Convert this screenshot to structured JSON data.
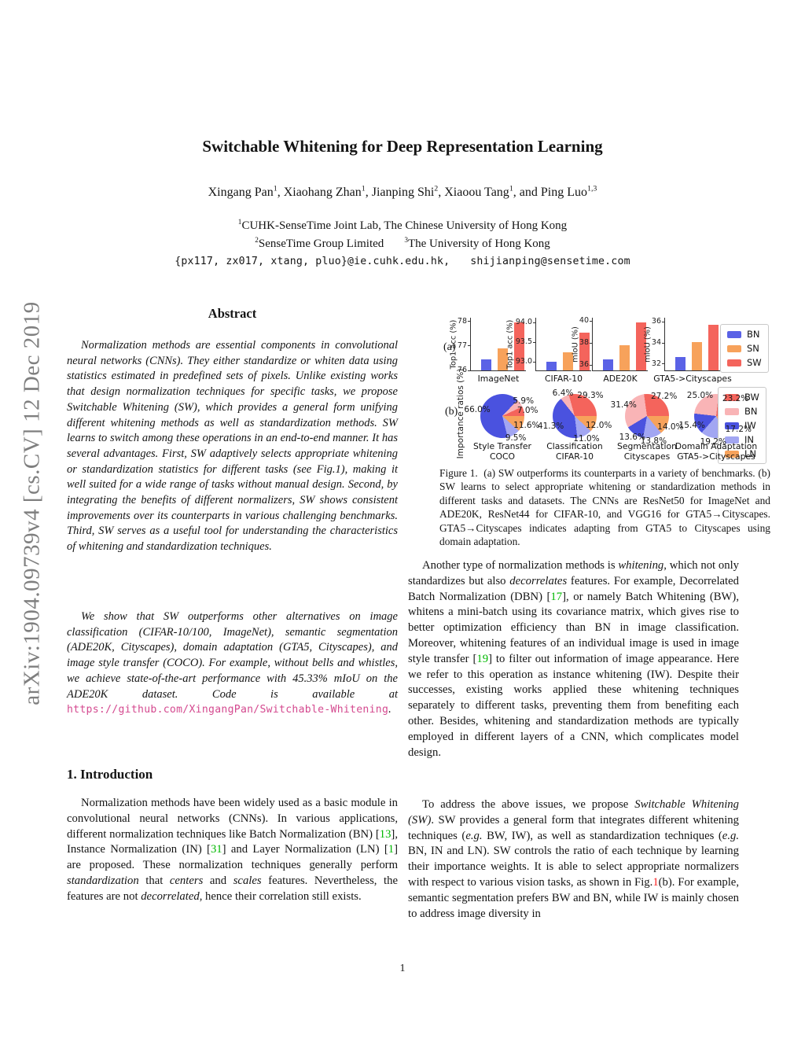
{
  "watermark": "arXiv:1904.09739v4  [cs.CV]  12 Dec 2019",
  "page_number": "1",
  "header": {
    "title": "Switchable Whitening for Deep Representation Learning",
    "authors_segments": [
      {
        "t": "Xingang Pan"
      },
      {
        "t": "1",
        "s": "sup"
      },
      {
        "t": ", Xiaohang Zhan"
      },
      {
        "t": "1",
        "s": "sup"
      },
      {
        "t": ", Jianping Shi"
      },
      {
        "t": "2",
        "s": "sup"
      },
      {
        "t": ", Xiaoou Tang"
      },
      {
        "t": "1",
        "s": "sup"
      },
      {
        "t": ", and Ping Luo"
      },
      {
        "t": "1,3",
        "s": "sup"
      }
    ],
    "affiliation1_segments": [
      {
        "t": "1",
        "s": "sup"
      },
      {
        "t": "CUHK-SenseTime Joint Lab, The Chinese University of Hong Kong"
      }
    ],
    "affiliation2_segments": [
      {
        "t": "2",
        "s": "sup"
      },
      {
        "t": "SenseTime Group Limited"
      },
      {
        "t": "",
        "s": "gap"
      },
      {
        "t": "3",
        "s": "sup"
      },
      {
        "t": "The University of Hong Kong"
      }
    ],
    "emails_segments": [
      {
        "t": "{px117, zx017, xtang, pluo}@ie.cuhk.edu.hk,"
      },
      {
        "t": "",
        "s": "gap"
      },
      {
        "t": "shijianping@sensetime.com"
      }
    ]
  },
  "abstract": {
    "heading": "Abstract",
    "p1": "Normalization methods are essential components in convolutional neural networks (CNNs). They either standardize or whiten data using statistics estimated in predefined sets of pixels. Unlike existing works that design normalization techniques for specific tasks, we propose Switchable Whitening (SW), which provides a general form unifying different whitening methods as well as standardization methods. SW learns to switch among these operations in an end-to-end manner. It has several advantages. First, SW adaptively selects appropriate whitening or standardization statistics for different tasks (see Fig.1), making it well suited for a wide range of tasks without manual design. Second, by integrating the benefits of different normalizers, SW shows consistent improvements over its counterparts in various challenging benchmarks. Third, SW serves as a useful tool for understanding the characteristics of whitening and standardization techniques.",
    "p2_segments": [
      {
        "t": "We show that SW outperforms other alternatives on image classification (CIFAR-10/100, ImageNet), semantic segmentation (ADE20K, Cityscapes), domain adaptation (GTA5, Cityscapes), and image style transfer (COCO). For example, without bells and whistles, we achieve state-of-the-art performance with 45.33% mIoU on the ADE20K dataset. Code is available at "
      },
      {
        "t": "https://github.com/XingangPan/Switchable-Whitening",
        "s": "link"
      },
      {
        "t": "."
      }
    ]
  },
  "introduction": {
    "heading": "1. Introduction",
    "p1_segments": [
      {
        "t": "Normalization methods have been widely used as a basic module in convolutional neural networks (CNNs). In various applications, different normalization techniques like Batch Normalization (BN) ["
      },
      {
        "t": "13",
        "s": "cite"
      },
      {
        "t": "], Instance Normalization (IN) ["
      },
      {
        "t": "31",
        "s": "cite"
      },
      {
        "t": "] and Layer Normalization (LN) ["
      },
      {
        "t": "1",
        "s": "cite"
      },
      {
        "t": "] are proposed. These normalization techniques generally perform "
      },
      {
        "t": "standardization",
        "s": "i"
      },
      {
        "t": " that "
      },
      {
        "t": "centers",
        "s": "i"
      },
      {
        "t": " and "
      },
      {
        "t": "scales",
        "s": "i"
      },
      {
        "t": " features. Nevertheless, the features are not "
      },
      {
        "t": "decorrelated",
        "s": "i"
      },
      {
        "t": ", hence their correlation still exists."
      }
    ]
  },
  "main": {
    "p1_segments": [
      {
        "t": "Another type of normalization methods is "
      },
      {
        "t": "whitening",
        "s": "i"
      },
      {
        "t": ", which not only standardizes but also "
      },
      {
        "t": "decorrelates",
        "s": "i"
      },
      {
        "t": " features. For example, Decorrelated Batch Normalization (DBN) ["
      },
      {
        "t": "17",
        "s": "cite"
      },
      {
        "t": "], or namely Batch Whitening (BW), whitens a mini-batch using its covariance matrix, which gives rise to better optimization efficiency than BN in image classification. Moreover, whitening features of an individual image is used in image style transfer ["
      },
      {
        "t": "19",
        "s": "cite"
      },
      {
        "t": "] to filter out information of image appearance. Here we refer to this operation as instance whitening (IW). Despite their successes, existing works applied these whitening techniques separately to different tasks, preventing them from benefiting each other. Besides, whitening and standardization methods are typically employed in different layers of a CNN, which complicates model design."
      }
    ],
    "p2_segments": [
      {
        "t": "To address the above issues, we propose "
      },
      {
        "t": "Switchable Whitening (SW)",
        "s": "i"
      },
      {
        "t": ". SW provides a general form that integrates different whitening techniques ("
      },
      {
        "t": "e.g.",
        "s": "i"
      },
      {
        "t": " BW, IW), as well as standardization techniques ("
      },
      {
        "t": "e.g.",
        "s": "i"
      },
      {
        "t": " BN, IN and LN). SW controls the ratio of each technique by learning their importance weights. It is able to select appropriate normalizers with respect to various vision tasks, as shown in Fig."
      },
      {
        "t": "1",
        "s": "figref"
      },
      {
        "t": "(b). For example, semantic segmentation prefers BW and BN, while IW is mainly chosen to address image diversity in"
      }
    ]
  },
  "figure": {
    "panel_a_label": "(a)",
    "panel_b_label": "(b)",
    "importance_axis_label": "Importance ratios (%)",
    "caption": "Figure 1.  (a) SW outperforms its counterparts in a variety of benchmarks. (b) SW learns to select appropriate whitening or standardization methods in different tasks and datasets. The CNNs are ResNet50 for ImageNet and ADE20K, ResNet44 for CIFAR-10, and VGG16 for GTA5→Cityscapes. GTA5→Cityscapes indicates adapting from GTA5 to Cityscapes using domain adaptation.",
    "bar_legend": [
      {
        "label": "BN",
        "color": "#5a62e6"
      },
      {
        "label": "SN",
        "color": "#f7a25b"
      },
      {
        "label": "SW",
        "color": "#f4645c"
      }
    ],
    "pie_legend": [
      {
        "label": "BW",
        "color": "#f4645c"
      },
      {
        "label": "BN",
        "color": "#f9b4b6"
      },
      {
        "label": "IW",
        "color": "#4a52df"
      },
      {
        "label": "IN",
        "color": "#a2a6f2"
      },
      {
        "label": "LN",
        "color": "#f7a25b"
      }
    ]
  },
  "chart_data": [
    {
      "type": "bar",
      "panel": "a",
      "title": "ImageNet",
      "ylabel": "Top1 acc (%)",
      "categories": [
        "BN",
        "SN",
        "SW"
      ],
      "values": [
        76.45,
        76.9,
        77.95
      ],
      "ylim": [
        76,
        78.15
      ],
      "yticks": [
        {
          "label": "76",
          "v": 76
        },
        {
          "label": "77",
          "v": 77
        },
        {
          "label": "78",
          "v": 78
        }
      ]
    },
    {
      "type": "bar",
      "panel": "a",
      "title": "CIFAR-10",
      "ylabel": "Top1 acc (%)",
      "categories": [
        "BN",
        "SN",
        "SW"
      ],
      "values": [
        93.0,
        93.25,
        93.75
      ],
      "ylim": [
        92.78,
        94.12
      ],
      "yticks": [
        {
          "label": "93.0",
          "v": 93.0
        },
        {
          "label": "93.5",
          "v": 93.5
        },
        {
          "label": "94.0",
          "v": 94.0
        }
      ]
    },
    {
      "type": "bar",
      "panel": "a",
      "title": "ADE20K",
      "ylabel": "mIoU (%)",
      "categories": [
        "BN",
        "SN",
        "SW"
      ],
      "values": [
        36.5,
        37.8,
        39.85
      ],
      "ylim": [
        35.5,
        40.3
      ],
      "yticks": [
        {
          "label": "36",
          "v": 36
        },
        {
          "label": "38",
          "v": 38
        },
        {
          "label": "40",
          "v": 40
        }
      ]
    },
    {
      "type": "bar",
      "panel": "a",
      "title": "GTA5->Cityscapes",
      "ylabel": "mIoU (%)",
      "categories": [
        "BN",
        "SN",
        "SW"
      ],
      "values": [
        32.7,
        34.1,
        35.7
      ],
      "ylim": [
        31.4,
        36.4
      ],
      "yticks": [
        {
          "label": "32",
          "v": 32
        },
        {
          "label": "34",
          "v": 34
        },
        {
          "label": "36",
          "v": 36
        }
      ]
    },
    {
      "type": "pie",
      "panel": "b",
      "title_lines": [
        "Style Transfer",
        "COCO"
      ],
      "categories": [
        "BW",
        "BN",
        "IW",
        "IN",
        "LN"
      ],
      "values": [
        7.0,
        5.9,
        66.0,
        9.5,
        11.6
      ],
      "labels": [
        "7.0%",
        "5.9%",
        "66.0%",
        "9.5%",
        "11.6%"
      ]
    },
    {
      "type": "pie",
      "panel": "b",
      "title_lines": [
        "Classification",
        "CIFAR-10"
      ],
      "categories": [
        "BW",
        "BN",
        "IW",
        "IN",
        "LN"
      ],
      "values": [
        29.3,
        6.4,
        41.3,
        11.0,
        12.0
      ],
      "labels": [
        "29.3%",
        "6.4%",
        "41.3%",
        "11.0%",
        "12.0%"
      ]
    },
    {
      "type": "pie",
      "panel": "b",
      "title_lines": [
        "Segmentation",
        "Cityscapes"
      ],
      "categories": [
        "BW",
        "BN",
        "IW",
        "IN",
        "LN"
      ],
      "values": [
        27.2,
        31.4,
        13.6,
        13.8,
        14.0
      ],
      "labels": [
        "27.2%",
        "31.4%",
        "13.6%",
        "13.8%",
        "14.0%"
      ]
    },
    {
      "type": "pie",
      "panel": "b",
      "title_lines": [
        "Domain Adaptation",
        "GTA5->Cityscapes"
      ],
      "categories": [
        "BW",
        "BN",
        "IW",
        "IN",
        "LN"
      ],
      "values": [
        23.2,
        25.0,
        15.4,
        19.2,
        17.2
      ],
      "labels": [
        "23.2%",
        "25.0%",
        "15.4%",
        "19.2%",
        "17.2%"
      ]
    }
  ]
}
